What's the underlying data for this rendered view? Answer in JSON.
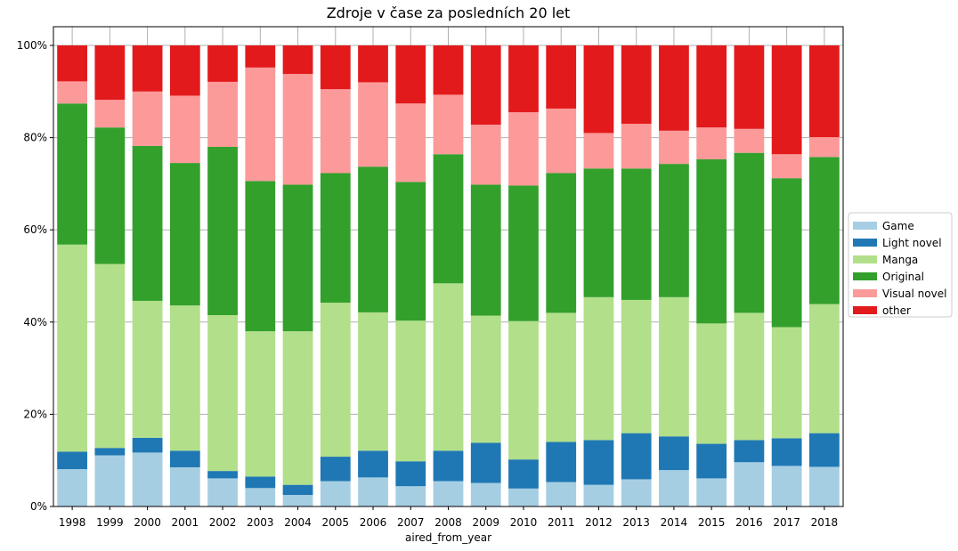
{
  "chart_data": {
    "type": "bar",
    "stacked": true,
    "title": "Zdroje v čase za posledních 20 let",
    "xlabel": "aired_from_year",
    "ylabel": "",
    "ylim": [
      0,
      100
    ],
    "y_tick_labels": [
      "0%",
      "20%",
      "40%",
      "60%",
      "80%",
      "100%"
    ],
    "grid": true,
    "legend_position": "right",
    "categories": [
      "1998",
      "1999",
      "2000",
      "2001",
      "2002",
      "2003",
      "2004",
      "2005",
      "2006",
      "2007",
      "2008",
      "2009",
      "2010",
      "2011",
      "2012",
      "2013",
      "2014",
      "2015",
      "2016",
      "2017",
      "2018"
    ],
    "series": [
      {
        "name": "Game",
        "color": "#a6cee3",
        "values": [
          8.1,
          11.1,
          11.7,
          8.5,
          6.1,
          4.0,
          2.5,
          5.5,
          6.3,
          4.4,
          5.5,
          5.1,
          3.9,
          5.3,
          4.7,
          5.9,
          7.9,
          6.1,
          9.6,
          8.8,
          8.6
        ]
      },
      {
        "name": "Light novel",
        "color": "#1f78b4",
        "values": [
          3.8,
          1.6,
          3.2,
          3.6,
          1.6,
          2.5,
          2.2,
          5.3,
          5.8,
          5.4,
          6.6,
          8.7,
          6.3,
          8.7,
          9.7,
          10.0,
          7.3,
          7.5,
          4.8,
          6.0,
          7.3
        ]
      },
      {
        "name": "Manga",
        "color": "#b2df8a",
        "values": [
          44.9,
          39.9,
          29.7,
          31.5,
          33.8,
          31.5,
          33.3,
          33.4,
          30.0,
          30.5,
          36.3,
          27.6,
          30.0,
          28.0,
          31.0,
          28.9,
          30.2,
          26.1,
          27.6,
          24.1,
          28.0
        ]
      },
      {
        "name": "Original",
        "color": "#33a02c",
        "values": [
          30.6,
          29.6,
          33.6,
          30.9,
          36.5,
          32.6,
          31.8,
          28.1,
          31.6,
          30.1,
          28.0,
          28.4,
          29.4,
          30.3,
          27.9,
          28.5,
          28.9,
          35.6,
          34.7,
          32.3,
          31.9
        ]
      },
      {
        "name": "Visual novel",
        "color": "#fb9a99",
        "values": [
          4.8,
          6.0,
          11.8,
          14.6,
          14.1,
          24.6,
          24.0,
          18.2,
          18.3,
          17.0,
          12.9,
          13.0,
          15.9,
          14.0,
          7.7,
          9.7,
          7.2,
          6.9,
          5.2,
          5.2,
          4.3
        ]
      },
      {
        "name": "other",
        "color": "#e31a1c",
        "values": [
          7.8,
          11.8,
          10.0,
          10.9,
          7.9,
          4.8,
          6.2,
          9.5,
          8.0,
          12.6,
          10.7,
          17.2,
          14.5,
          13.7,
          19.0,
          17.0,
          18.5,
          17.8,
          18.1,
          23.6,
          19.9
        ]
      }
    ]
  }
}
